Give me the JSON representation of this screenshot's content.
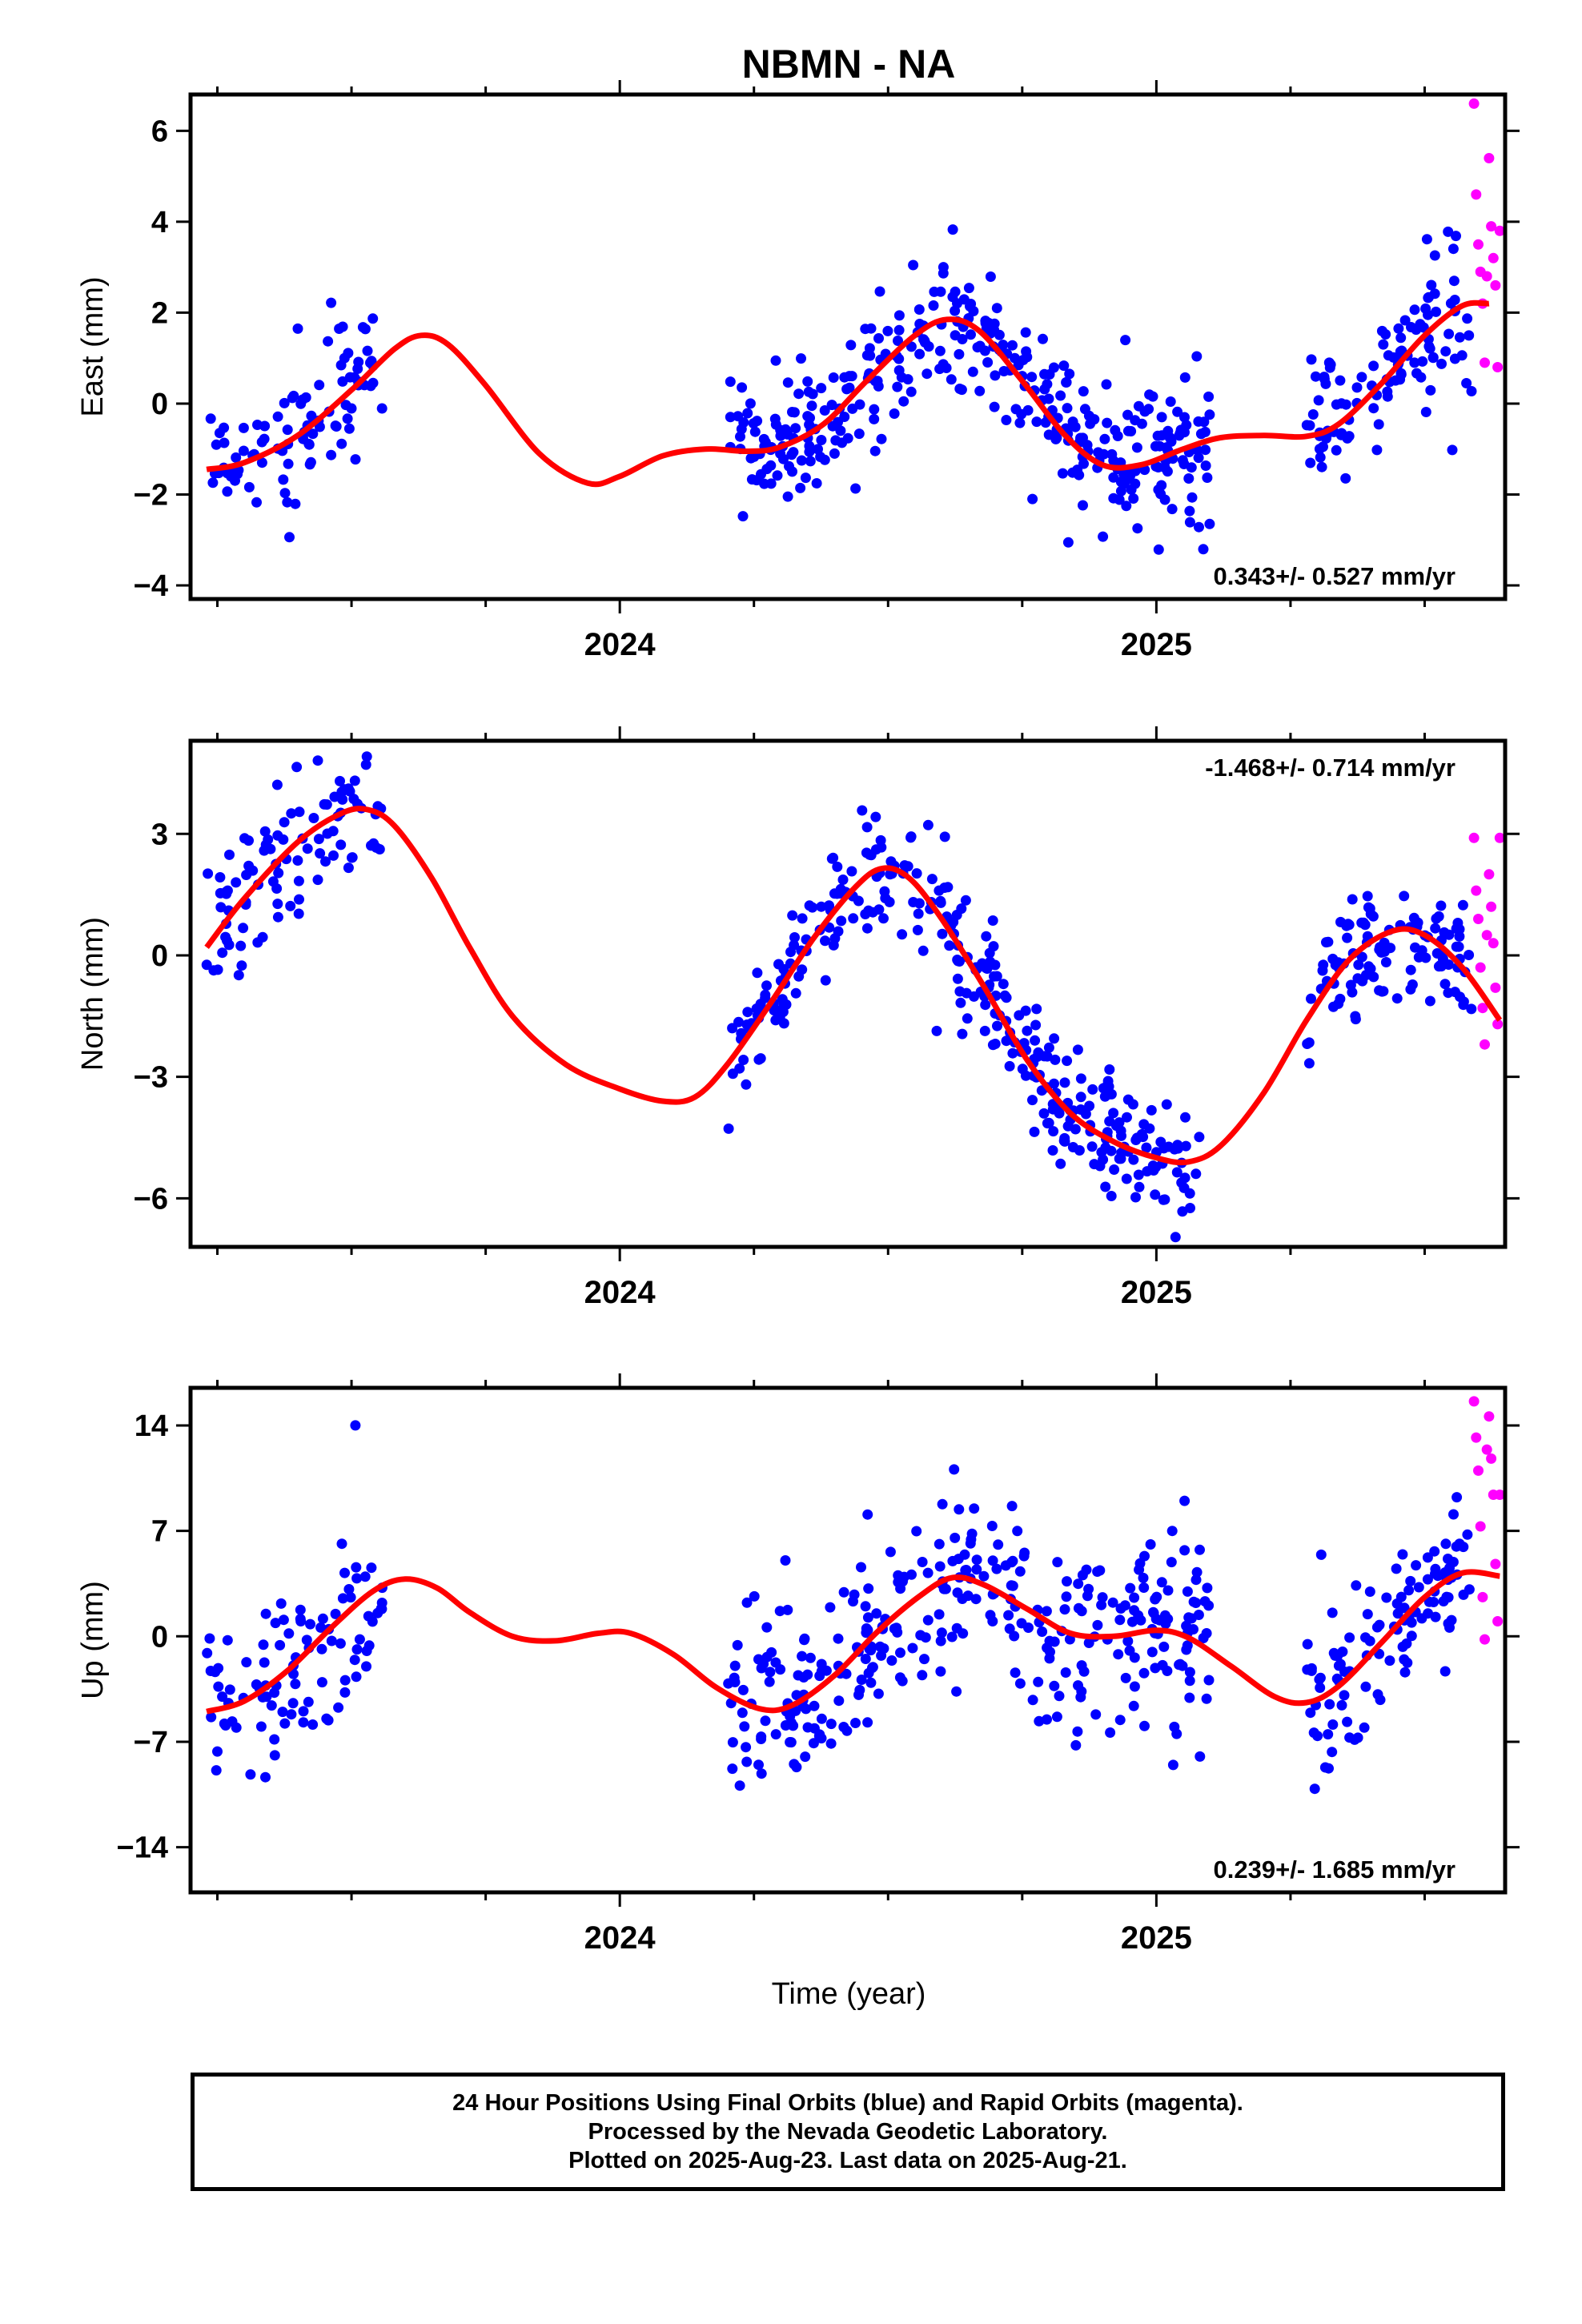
{
  "title": "NBMN - NA",
  "xlabel": "Time (year)",
  "caption": [
    "24 Hour Positions Using Final Orbits (blue) and Rapid Orbits (magenta).",
    "Processed by the Nevada Geodetic Laboratory.",
    "Plotted on 2025-Aug-23. Last data on 2025-Aug-21."
  ],
  "colors": {
    "final": "#0000ff",
    "rapid": "#ff00ff",
    "fit": "#ff0000",
    "frame": "#000000"
  },
  "chart_data": [
    {
      "type": "scatter",
      "ylabel": "East (mm)",
      "xlim": [
        2023.2,
        2025.65
      ],
      "ylim": [
        -4.3,
        6.8
      ],
      "yticks": [
        -4,
        -2,
        0,
        2,
        4,
        6
      ],
      "xticks_labeled": [
        2024,
        2025
      ],
      "rate_label": "0.343+/- 0.527 mm/yr",
      "rate_position": "bottom-right",
      "fit_knots": [
        [
          2023.23,
          -1.45
        ],
        [
          2023.3,
          -1.3
        ],
        [
          2023.4,
          -0.7
        ],
        [
          2023.5,
          0.3
        ],
        [
          2023.58,
          1.2
        ],
        [
          2023.63,
          1.5
        ],
        [
          2023.68,
          1.3
        ],
        [
          2023.75,
          0.4
        ],
        [
          2023.85,
          -1.1
        ],
        [
          2023.94,
          -1.75
        ],
        [
          2024.0,
          -1.6
        ],
        [
          2024.08,
          -1.15
        ],
        [
          2024.16,
          -1.0
        ],
        [
          2024.24,
          -1.05
        ],
        [
          2024.3,
          -0.95
        ],
        [
          2024.38,
          -0.45
        ],
        [
          2024.46,
          0.5
        ],
        [
          2024.55,
          1.5
        ],
        [
          2024.61,
          1.85
        ],
        [
          2024.67,
          1.6
        ],
        [
          2024.75,
          0.5
        ],
        [
          2024.83,
          -0.7
        ],
        [
          2024.9,
          -1.35
        ],
        [
          2024.97,
          -1.35
        ],
        [
          2025.05,
          -1.0
        ],
        [
          2025.12,
          -0.75
        ],
        [
          2025.2,
          -0.7
        ],
        [
          2025.28,
          -0.72
        ],
        [
          2025.34,
          -0.45
        ],
        [
          2025.42,
          0.45
        ],
        [
          2025.5,
          1.5
        ],
        [
          2025.57,
          2.15
        ],
        [
          2025.62,
          2.2
        ]
      ],
      "final_segments": [
        {
          "t0": 2023.23,
          "t1": 2023.56,
          "count": 95,
          "scatter": 0.8
        },
        {
          "t0": 2024.2,
          "t1": 2024.98,
          "count": 300,
          "scatter": 0.8
        },
        {
          "t0": 2024.98,
          "t1": 2025.1,
          "count": 60,
          "scatter": 0.9
        },
        {
          "t0": 2025.28,
          "t1": 2025.59,
          "count": 110,
          "scatter": 0.8
        }
      ],
      "rapid": {
        "t0": 2025.592,
        "t1": 2025.64,
        "values": [
          6.6,
          5.4,
          4.6,
          3.9,
          3.5,
          3.2,
          2.9,
          2.6,
          2.2,
          0.8,
          0.9,
          3.8,
          2.8
        ]
      }
    },
    {
      "type": "scatter",
      "ylabel": "North (mm)",
      "xlim": [
        2023.2,
        2025.65
      ],
      "ylim": [
        -7.2,
        5.3
      ],
      "yticks": [
        -6,
        -3,
        0,
        3
      ],
      "xticks_labeled": [
        2024,
        2025
      ],
      "rate_label": "-1.468+/- 0.714 mm/yr",
      "rate_position": "top-right",
      "fit_knots": [
        [
          2023.23,
          0.2
        ],
        [
          2023.3,
          1.4
        ],
        [
          2023.4,
          2.8
        ],
        [
          2023.48,
          3.5
        ],
        [
          2023.53,
          3.6
        ],
        [
          2023.58,
          3.2
        ],
        [
          2023.65,
          1.9
        ],
        [
          2023.72,
          0.2
        ],
        [
          2023.8,
          -1.5
        ],
        [
          2023.9,
          -2.7
        ],
        [
          2024.0,
          -3.3
        ],
        [
          2024.08,
          -3.6
        ],
        [
          2024.14,
          -3.5
        ],
        [
          2024.2,
          -2.7
        ],
        [
          2024.28,
          -1.2
        ],
        [
          2024.36,
          0.4
        ],
        [
          2024.44,
          1.7
        ],
        [
          2024.49,
          2.15
        ],
        [
          2024.54,
          1.9
        ],
        [
          2024.6,
          0.9
        ],
        [
          2024.68,
          -0.8
        ],
        [
          2024.76,
          -2.6
        ],
        [
          2024.84,
          -3.9
        ],
        [
          2024.92,
          -4.6
        ],
        [
          2025.0,
          -5.0
        ],
        [
          2025.06,
          -5.1
        ],
        [
          2025.12,
          -4.7
        ],
        [
          2025.2,
          -3.4
        ],
        [
          2025.28,
          -1.6
        ],
        [
          2025.36,
          -0.1
        ],
        [
          2025.44,
          0.6
        ],
        [
          2025.5,
          0.5
        ],
        [
          2025.57,
          -0.3
        ],
        [
          2025.64,
          -1.6
        ]
      ],
      "final_segments": [
        {
          "t0": 2023.23,
          "t1": 2023.56,
          "count": 95,
          "scatter": 0.9
        },
        {
          "t0": 2024.2,
          "t1": 2025.1,
          "count": 330,
          "scatter": 0.8
        },
        {
          "t0": 2025.28,
          "t1": 2025.59,
          "count": 110,
          "scatter": 0.8
        }
      ],
      "rapid": {
        "t0": 2025.592,
        "t1": 2025.64,
        "values": [
          2.9,
          2.0,
          1.6,
          1.2,
          0.9,
          0.3,
          -0.3,
          -0.8,
          -1.3,
          -1.7,
          -2.2,
          2.9,
          0.5
        ]
      }
    },
    {
      "type": "scatter",
      "ylabel": "Up (mm)",
      "xlim": [
        2023.2,
        2025.65
      ],
      "ylim": [
        -17,
        16.5
      ],
      "yticks": [
        -14,
        -7,
        0,
        7,
        14
      ],
      "xticks_labeled": [
        2024,
        2025
      ],
      "rate_label": "0.239+/- 1.685 mm/yr",
      "rate_position": "bottom-right",
      "fit_knots": [
        [
          2023.23,
          -5.0
        ],
        [
          2023.3,
          -4.3
        ],
        [
          2023.38,
          -2.3
        ],
        [
          2023.46,
          0.5
        ],
        [
          2023.54,
          3.0
        ],
        [
          2023.6,
          3.8
        ],
        [
          2023.66,
          3.2
        ],
        [
          2023.72,
          1.6
        ],
        [
          2023.8,
          0.0
        ],
        [
          2023.88,
          -0.3
        ],
        [
          2023.96,
          0.2
        ],
        [
          2024.02,
          0.2
        ],
        [
          2024.1,
          -1.2
        ],
        [
          2024.18,
          -3.4
        ],
        [
          2024.26,
          -4.8
        ],
        [
          2024.32,
          -4.6
        ],
        [
          2024.4,
          -2.6
        ],
        [
          2024.48,
          0.3
        ],
        [
          2024.56,
          2.7
        ],
        [
          2024.62,
          3.9
        ],
        [
          2024.68,
          3.4
        ],
        [
          2024.76,
          1.8
        ],
        [
          2024.84,
          0.2
        ],
        [
          2024.92,
          0.0
        ],
        [
          2025.0,
          0.4
        ],
        [
          2025.06,
          -0.1
        ],
        [
          2025.14,
          -2.0
        ],
        [
          2025.22,
          -4.0
        ],
        [
          2025.28,
          -4.4
        ],
        [
          2025.34,
          -3.3
        ],
        [
          2025.42,
          -0.4
        ],
        [
          2025.5,
          2.6
        ],
        [
          2025.57,
          4.2
        ],
        [
          2025.64,
          4.0
        ]
      ],
      "final_segments": [
        {
          "t0": 2023.23,
          "t1": 2023.56,
          "count": 95,
          "scatter": 3.2
        },
        {
          "t0": 2024.2,
          "t1": 2025.1,
          "count": 330,
          "scatter": 3.2
        },
        {
          "t0": 2025.28,
          "t1": 2025.59,
          "count": 110,
          "scatter": 2.5
        }
      ],
      "rapid": {
        "t0": 2025.592,
        "t1": 2025.64,
        "values": [
          15.6,
          14.6,
          13.2,
          11.8,
          11.0,
          9.4,
          7.3,
          4.8,
          2.6,
          1.0,
          -0.2,
          9.4,
          12.4
        ]
      }
    }
  ]
}
